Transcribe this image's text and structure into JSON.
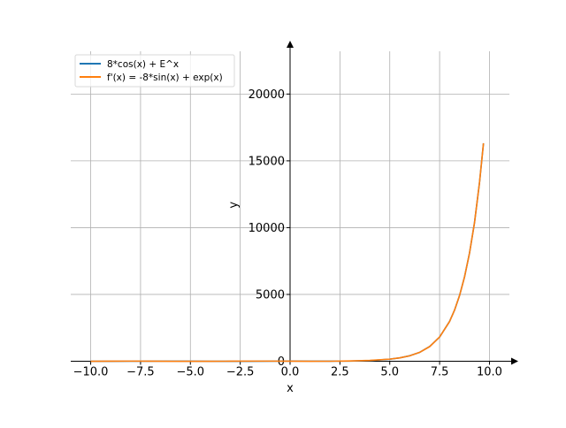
{
  "chart_data": {
    "type": "line",
    "title": "",
    "xlabel": "x",
    "ylabel": "y",
    "xlim": [
      -11,
      11
    ],
    "ylim": [
      -100,
      23200
    ],
    "xticks": [
      -10.0,
      -7.5,
      -5.0,
      -2.5,
      0.0,
      2.5,
      5.0,
      7.5,
      10.0
    ],
    "xtick_labels": [
      "−10.0",
      "−7.5",
      "−5.0",
      "−2.5",
      "0.0",
      "2.5",
      "5.0",
      "7.5",
      "10.0"
    ],
    "yticks": [
      0,
      5000,
      10000,
      15000,
      20000
    ],
    "ytick_labels": [
      "0",
      "5000",
      "10000",
      "15000",
      "20000"
    ],
    "grid": true,
    "legend_position": "top-left",
    "series": [
      {
        "name": "8*cos(x) + E^x",
        "color": "#1f77b4",
        "x": [
          -10.0,
          -9.0,
          -8.0,
          -7.0,
          -6.0,
          -5.0,
          -4.0,
          -3.0,
          -2.0,
          -1.0,
          0.0,
          1.0,
          2.0,
          3.0,
          4.0,
          5.0,
          5.5,
          6.0,
          6.5,
          7.0,
          7.5,
          8.0,
          8.25,
          8.5,
          8.75,
          9.0,
          9.25,
          9.5,
          9.7
        ],
        "y": [
          -6.7,
          -7.3,
          -1.2,
          6.0,
          7.7,
          2.3,
          -5.2,
          -7.9,
          -3.2,
          4.7,
          9.0,
          7.0,
          4.1,
          12.2,
          49.4,
          150.7,
          250.2,
          410.1,
          663.3,
          1102.7,
          1808.0,
          2979.8,
          3828.0,
          4918.4,
          6316.3,
          8095.8,
          10374.1,
          13359.7,
          16322.0
        ]
      },
      {
        "name": "f'(x) = -8*sin(x) + exp(x)",
        "color": "#ff7f0e",
        "x": [
          -10.0,
          -9.0,
          -8.0,
          -7.0,
          -6.0,
          -5.0,
          -4.0,
          -3.0,
          -2.0,
          -1.0,
          0.0,
          1.0,
          2.0,
          3.0,
          4.0,
          5.0,
          5.5,
          6.0,
          6.5,
          7.0,
          7.5,
          8.0,
          8.25,
          8.5,
          8.75,
          9.0,
          9.25,
          9.5,
          9.7
        ],
        "y": [
          -4.4,
          3.3,
          7.9,
          5.3,
          -2.2,
          -7.7,
          -6.0,
          1.2,
          7.4,
          7.1,
          1.0,
          -4.0,
          0.1,
          18.9,
          60.7,
          156.1,
          250.3,
          405.7,
          666.3,
          1091.4,
          1813.3,
          2973.0,
          3832.4,
          4920.6,
          6312.1,
          8099.8,
          10373.0,
          13358.0,
          16316.0
        ]
      }
    ]
  }
}
